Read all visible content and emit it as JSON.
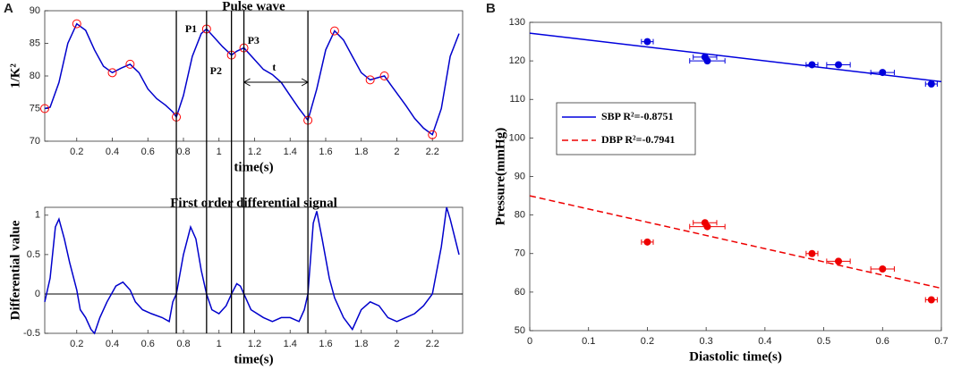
{
  "chart_data": [
    {
      "type": "line",
      "panel": "A",
      "title": "Pulse wave",
      "xlabel": "time(s)",
      "ylabel": "1/K²",
      "xlim": [
        0.02,
        2.37
      ],
      "xticks": [
        0.2,
        0.4,
        0.6,
        0.8,
        1,
        1.2,
        1.4,
        1.6,
        1.8,
        2,
        2.2
      ],
      "ylim": [
        70,
        90
      ],
      "yticks": [
        70,
        75,
        80,
        85,
        90
      ],
      "color": "#0000cc",
      "x": [
        0.02,
        0.05,
        0.1,
        0.15,
        0.2,
        0.25,
        0.3,
        0.35,
        0.4,
        0.45,
        0.5,
        0.55,
        0.6,
        0.65,
        0.7,
        0.74,
        0.76,
        0.8,
        0.85,
        0.9,
        0.93,
        0.97,
        1.02,
        1.07,
        1.1,
        1.14,
        1.2,
        1.25,
        1.3,
        1.35,
        1.4,
        1.45,
        1.5,
        1.55,
        1.6,
        1.65,
        1.7,
        1.75,
        1.8,
        1.85,
        1.9,
        1.93,
        1.97,
        2.05,
        2.1,
        2.15,
        2.2,
        2.25,
        2.3,
        2.35
      ],
      "values": [
        75,
        75.2,
        79,
        85,
        88,
        87,
        84,
        81.5,
        80.5,
        81.2,
        81.8,
        80.5,
        78,
        76.5,
        75.5,
        74.5,
        73.7,
        77,
        83,
        86.5,
        87.2,
        86,
        84.5,
        83.2,
        83.8,
        84.3,
        82.5,
        81,
        80.2,
        79,
        77,
        75,
        73.2,
        78,
        84,
        86.9,
        85.5,
        83,
        80.5,
        79.4,
        79.8,
        80,
        78.5,
        75.5,
        73.5,
        72,
        71,
        75,
        83,
        86.5
      ],
      "markers": {
        "color": "#ff0000",
        "x": [
          0.02,
          0.2,
          0.4,
          0.5,
          0.76,
          0.93,
          1.07,
          1.14,
          1.5,
          1.65,
          1.85,
          1.93,
          2.2
        ],
        "values": [
          75,
          88,
          80.5,
          81.8,
          73.7,
          87.2,
          83.2,
          84.3,
          73.2,
          86.9,
          79.4,
          80,
          71
        ]
      },
      "vlines": [
        0.76,
        0.93,
        1.07,
        1.14,
        1.5
      ],
      "annotations": [
        "P1",
        "P2",
        "P3",
        "t"
      ]
    },
    {
      "type": "line",
      "title": "First order differential signal",
      "xlabel": "time(s)",
      "ylabel": "Differential value",
      "xlim": [
        0.02,
        2.37
      ],
      "xticks": [
        0.2,
        0.4,
        0.6,
        0.8,
        1,
        1.2,
        1.4,
        1.6,
        1.8,
        2,
        2.2
      ],
      "ylim": [
        -0.5,
        1.1
      ],
      "yticks": [
        -0.5,
        0,
        0.5,
        1
      ],
      "color": "#0000cc",
      "hline": 0,
      "x": [
        0.02,
        0.05,
        0.08,
        0.1,
        0.13,
        0.16,
        0.2,
        0.22,
        0.25,
        0.28,
        0.3,
        0.33,
        0.37,
        0.42,
        0.46,
        0.5,
        0.53,
        0.57,
        0.62,
        0.68,
        0.72,
        0.74,
        0.76,
        0.8,
        0.84,
        0.87,
        0.9,
        0.93,
        0.96,
        1.0,
        1.04,
        1.07,
        1.1,
        1.12,
        1.14,
        1.18,
        1.25,
        1.3,
        1.35,
        1.4,
        1.45,
        1.48,
        1.5,
        1.53,
        1.55,
        1.58,
        1.62,
        1.65,
        1.7,
        1.75,
        1.8,
        1.85,
        1.9,
        1.95,
        2.0,
        2.05,
        2.1,
        2.15,
        2.2,
        2.25,
        2.28,
        2.3,
        2.35
      ],
      "values": [
        -0.1,
        0.2,
        0.85,
        0.95,
        0.7,
        0.4,
        0.05,
        -0.2,
        -0.3,
        -0.45,
        -0.5,
        -0.3,
        -0.1,
        0.1,
        0.15,
        0.05,
        -0.1,
        -0.2,
        -0.25,
        -0.3,
        -0.35,
        -0.1,
        0,
        0.5,
        0.85,
        0.7,
        0.3,
        0,
        -0.2,
        -0.25,
        -0.15,
        0,
        0.13,
        0.1,
        0,
        -0.2,
        -0.3,
        -0.35,
        -0.3,
        -0.3,
        -0.35,
        -0.2,
        0,
        0.9,
        1.05,
        0.7,
        0.2,
        -0.05,
        -0.3,
        -0.45,
        -0.2,
        -0.1,
        -0.15,
        -0.3,
        -0.35,
        -0.3,
        -0.25,
        -0.15,
        0,
        0.6,
        1.1,
        0.95,
        0.5
      ]
    },
    {
      "type": "scatter",
      "panel": "B",
      "xlabel": "Diastolic time(s)",
      "ylabel": "Pressure(mmHg)",
      "xlim": [
        0,
        0.7
      ],
      "xticks": [
        0,
        0.1,
        0.2,
        0.3,
        0.4,
        0.5,
        0.6,
        0.7
      ],
      "ylim": [
        50,
        130
      ],
      "yticks": [
        50,
        60,
        70,
        80,
        90,
        100,
        110,
        120,
        130
      ],
      "legend": "upper left",
      "series": [
        {
          "name": "SBP  R²=-0.8751",
          "color": "#0000dd",
          "dash": false,
          "x": [
            0.2,
            0.298,
            0.302,
            0.48,
            0.525,
            0.6,
            0.683
          ],
          "values": [
            125,
            121,
            120,
            119,
            119,
            117,
            114
          ],
          "xerr": [
            0.01,
            0.02,
            0.03,
            0.01,
            0.02,
            0.02,
            0.01
          ],
          "fit": {
            "x": [
              0,
              0.7
            ],
            "values": [
              127.2,
              114.6
            ]
          }
        },
        {
          "name": "DBP  R²=-0.7941",
          "color": "#ee0000",
          "dash": true,
          "x": [
            0.2,
            0.298,
            0.302,
            0.48,
            0.525,
            0.6,
            0.683
          ],
          "values": [
            73,
            78,
            77,
            70,
            68,
            66,
            58
          ],
          "xerr": [
            0.01,
            0.02,
            0.03,
            0.01,
            0.02,
            0.02,
            0.01
          ],
          "fit": {
            "x": [
              0,
              0.7
            ],
            "values": [
              85,
              61
            ]
          }
        }
      ]
    }
  ]
}
